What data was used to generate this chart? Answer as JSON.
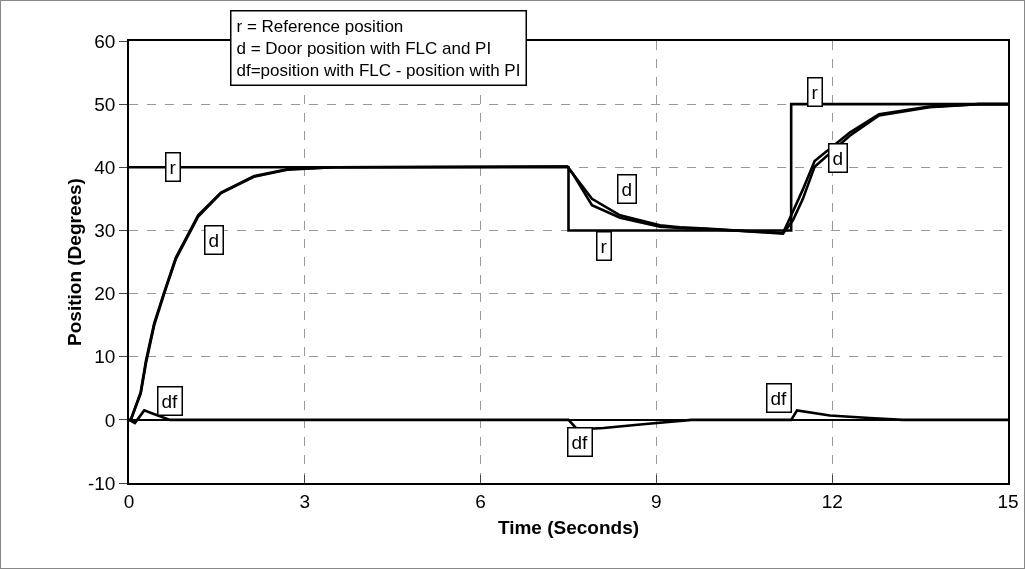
{
  "chart_data": {
    "type": "line",
    "xlabel": "Time (Seconds)",
    "ylabel": "Position (Degrees)",
    "xlim": [
      0,
      15
    ],
    "xticks": [
      0,
      3,
      6,
      9,
      12,
      15
    ],
    "ylim": [
      -10,
      60
    ],
    "yticks": [
      -10,
      0,
      10,
      20,
      30,
      40,
      50,
      60
    ],
    "grid": true,
    "marker": "none",
    "line_style": "solid",
    "series": [
      {
        "color": "#000000",
        "x": [
          0,
          7.5,
          7.5,
          11.3,
          11.3,
          15
        ],
        "values": [
          40,
          40,
          30,
          30,
          50,
          50
        ]
      },
      {
        "color": "#000000",
        "x": [
          0,
          0.03,
          0.2,
          0.29,
          0.43,
          0.6,
          0.8,
          1.18,
          1.57,
          2.13,
          2.7,
          3.5,
          7.48,
          7.9,
          8.38,
          9.06,
          9.4,
          9.85,
          11.16,
          11.33,
          11.5,
          11.7,
          12.3,
          12.8,
          13.66,
          14.5,
          15
        ],
        "values": [
          0,
          0,
          4.4,
          9.4,
          15.3,
          20.2,
          25.7,
          32.4,
          36,
          38.6,
          39.7,
          40,
          40.1,
          35,
          32.4,
          30.8,
          30.5,
          30.3,
          29.5,
          31.6,
          35,
          40.1,
          45,
          48.2,
          49.5,
          50,
          50
        ]
      },
      {
        "color": "#000000",
        "x": [
          0,
          0.03,
          0.2,
          0.29,
          0.43,
          0.6,
          0.8,
          1.18,
          1.57,
          2.13,
          2.7,
          3.5,
          7.48,
          7.58,
          7.9,
          8.38,
          9.06,
          9.4,
          9.85,
          11.16,
          11.33,
          11.5,
          11.7,
          12.3,
          12.8,
          13.66,
          14.5,
          15
        ],
        "values": [
          0,
          0,
          4.2,
          9,
          15,
          20,
          25.5,
          32.2,
          35.9,
          38.5,
          39.6,
          40,
          40.1,
          38.9,
          34,
          32,
          30.6,
          30.4,
          30.2,
          29.6,
          33,
          36.5,
          41,
          45.5,
          48.4,
          49.6,
          50,
          50
        ]
      },
      {
        "color": "#000000",
        "x": [
          0,
          0.1,
          0.26,
          0.4,
          0.7,
          7.5,
          7.65,
          8.1,
          8.77,
          9.6,
          11.3,
          11.4,
          11.96,
          12.64,
          13.2,
          15
        ],
        "values": [
          0,
          -0.5,
          1.5,
          1,
          0,
          0,
          -1.5,
          -1.3,
          -0.7,
          0,
          0,
          1.5,
          0.7,
          0.3,
          0,
          0
        ]
      }
    ],
    "annotations": [
      "r = Reference position",
      "d = Door position with FLC and PI",
      "df=position with FLC - position with PI",
      {
        "text": "r",
        "x": 0.75,
        "y": 40
      },
      {
        "text": "d",
        "x": 1.45,
        "y": 28.5
      },
      {
        "text": "df",
        "x": 0.7,
        "y": 3
      },
      {
        "text": "d",
        "x": 8.5,
        "y": 36.5
      },
      {
        "text": "r",
        "x": 8.1,
        "y": 27.5
      },
      {
        "text": "df",
        "x": 7.7,
        "y": -3.5
      },
      {
        "text": "r",
        "x": 11.7,
        "y": 52
      },
      {
        "text": "d",
        "x": 12.1,
        "y": 41.5
      },
      {
        "text": "df",
        "x": 11.1,
        "y": 3.5
      }
    ]
  }
}
